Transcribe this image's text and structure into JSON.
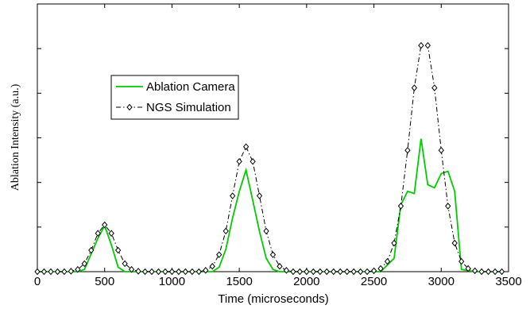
{
  "chart_data": {
    "type": "line",
    "xlabel": "Time (microseconds)",
    "ylabel": "Ablation Intensity (a.u.)",
    "xlim": [
      0,
      3500
    ],
    "xticks": [
      0,
      500,
      1000,
      1500,
      2000,
      2500,
      3000,
      3500
    ],
    "ylim": [
      0,
      6
    ],
    "yticks": [
      0,
      1,
      2,
      3,
      4,
      5,
      6
    ],
    "legend": "upper left",
    "series": [
      {
        "name": "Ablation Camera",
        "color": "#00cc00",
        "style": "solid",
        "x": [
          0,
          300,
          350,
          400,
          450,
          500,
          550,
          600,
          650,
          1300,
          1350,
          1400,
          1450,
          1500,
          1550,
          1600,
          1650,
          1700,
          1750,
          1800,
          2550,
          2650,
          2700,
          2750,
          2800,
          2850,
          2900,
          2950,
          3000,
          3050,
          3100,
          3150,
          3250,
          3450
        ],
        "values": [
          0,
          0,
          0.05,
          0.4,
          0.75,
          1.03,
          0.6,
          0.1,
          0,
          0,
          0.1,
          0.5,
          1.2,
          1.8,
          2.28,
          1.6,
          0.9,
          0.3,
          0.05,
          0,
          0,
          0.3,
          1.5,
          1.8,
          1.75,
          2.98,
          1.95,
          1.88,
          2.2,
          2.25,
          1.8,
          0.05,
          0,
          0
        ]
      },
      {
        "name": "NGS Simulation",
        "color": "#000000",
        "style": "dashdot",
        "marker": "diamond",
        "x": [
          0,
          50,
          100,
          150,
          200,
          250,
          300,
          350,
          400,
          450,
          500,
          550,
          600,
          650,
          700,
          750,
          800,
          850,
          900,
          950,
          1000,
          1050,
          1100,
          1150,
          1200,
          1250,
          1300,
          1350,
          1400,
          1450,
          1500,
          1550,
          1600,
          1650,
          1700,
          1750,
          1800,
          1850,
          1900,
          1950,
          2000,
          2050,
          2100,
          2150,
          2200,
          2250,
          2300,
          2350,
          2400,
          2450,
          2500,
          2550,
          2600,
          2650,
          2700,
          2750,
          2800,
          2850,
          2900,
          2950,
          3000,
          3050,
          3100,
          3150,
          3200,
          3250,
          3300,
          3350,
          3400,
          3450
        ],
        "values": [
          0,
          0,
          0,
          0,
          0,
          0.01,
          0.05,
          0.18,
          0.48,
          0.86,
          1.05,
          0.86,
          0.48,
          0.18,
          0.05,
          0.01,
          0,
          0,
          0,
          0,
          0,
          0,
          0,
          0,
          0,
          0.03,
          0.12,
          0.38,
          0.91,
          1.7,
          2.47,
          2.8,
          2.47,
          1.7,
          0.91,
          0.38,
          0.12,
          0.03,
          0,
          0,
          0,
          0,
          0,
          0,
          0,
          0,
          0,
          0,
          0,
          0,
          0.02,
          0.07,
          0.23,
          0.64,
          1.47,
          2.72,
          4.12,
          5.07,
          5.07,
          4.12,
          2.72,
          1.47,
          0.64,
          0.23,
          0.07,
          0.02,
          0,
          0,
          0,
          0
        ]
      }
    ]
  }
}
